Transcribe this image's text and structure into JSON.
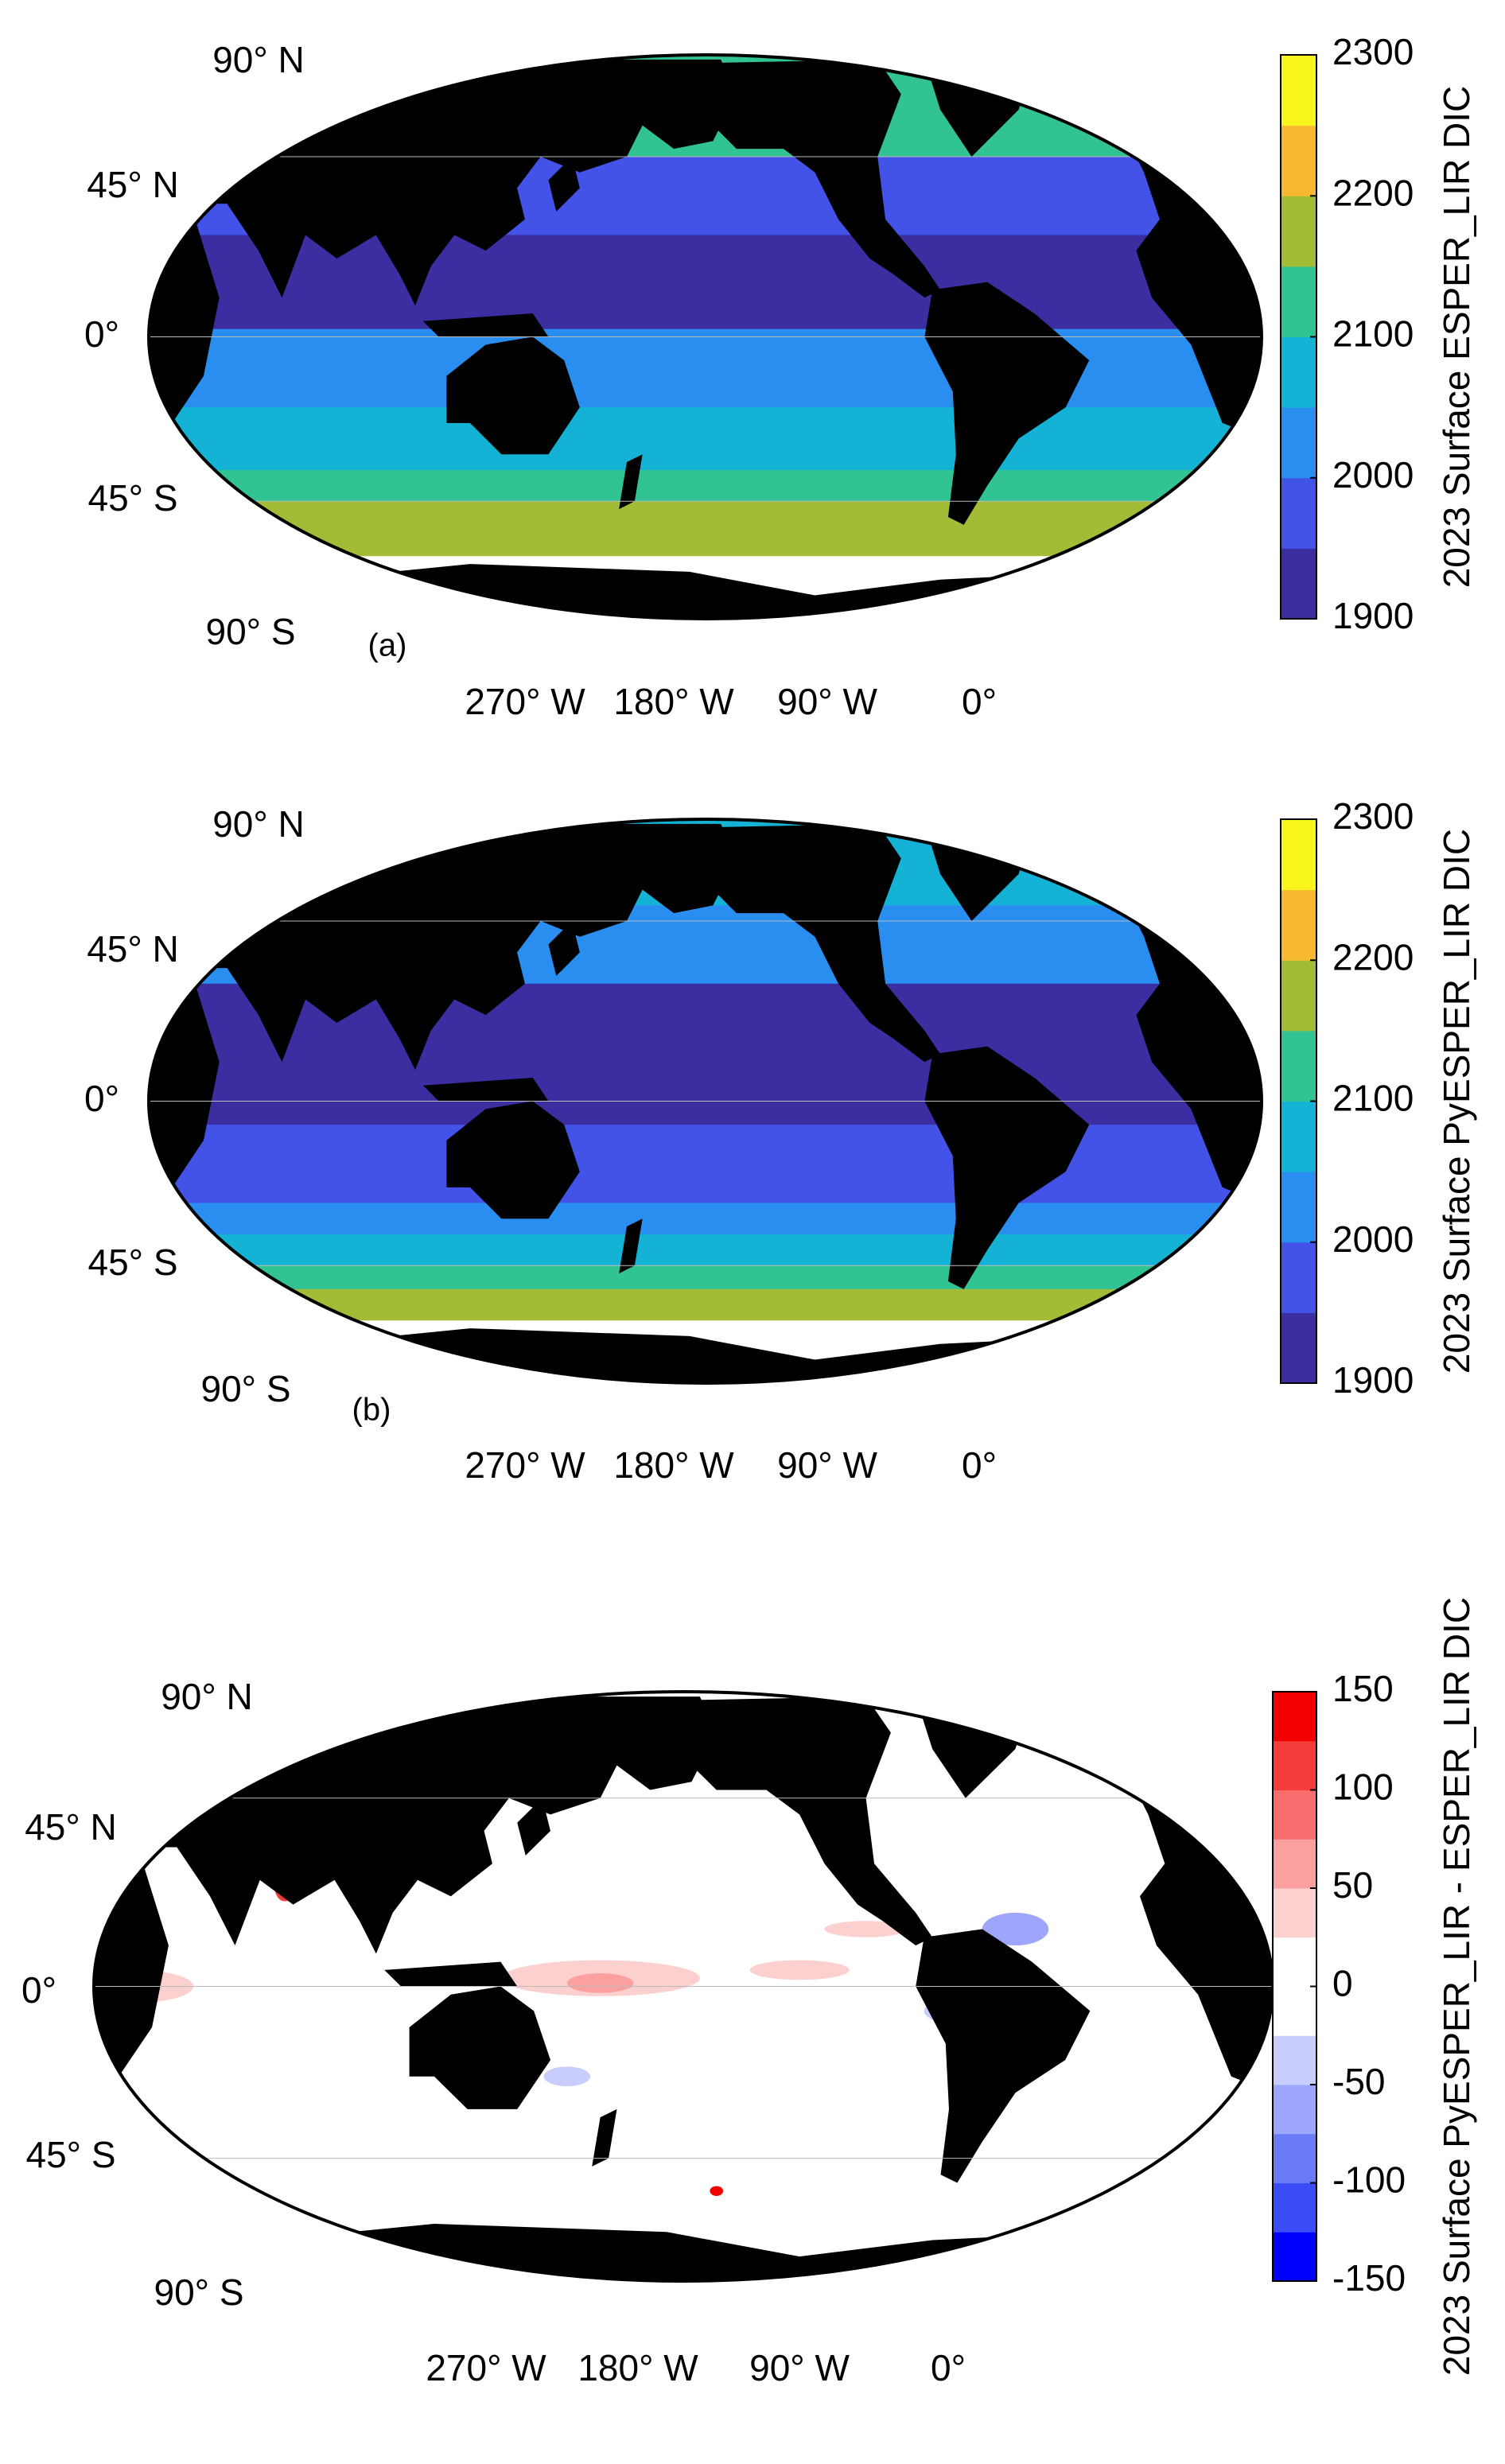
{
  "panels": [
    {
      "label": "(a)",
      "colorbar": {
        "label": "2023 Surface ESPER_LIR DIC",
        "lim": [
          1900,
          2300
        ],
        "ticks": [
          1900,
          2000,
          2100,
          2200,
          2300
        ],
        "colors": [
          "#3a2ea0",
          "#4353e8",
          "#2a8ef0",
          "#14b3d6",
          "#31c394",
          "#a2bd35",
          "#f8b932",
          "#f8f51c"
        ]
      },
      "lat_labels": [
        "90° N",
        "45° N",
        "0°",
        "45° S",
        "90° S"
      ],
      "lon_labels": [
        "270° W",
        "180° W",
        "90° W",
        "0°"
      ]
    },
    {
      "label": "(b)",
      "colorbar": {
        "label": "2023 Surface PyESPER_LIR DIC",
        "lim": [
          1900,
          2300
        ],
        "ticks": [
          1900,
          2000,
          2100,
          2200,
          2300
        ],
        "colors": [
          "#3a2ea0",
          "#4353e8",
          "#2a8ef0",
          "#14b3d6",
          "#31c394",
          "#a2bd35",
          "#f8b932",
          "#f8f51c"
        ]
      },
      "lat_labels": [
        "90° N",
        "45° N",
        "0°",
        "45° S",
        "90° S"
      ],
      "lon_labels": [
        "270° W",
        "180° W",
        "90° W",
        "0°"
      ]
    },
    {
      "colorbar": {
        "label": "2023 Surface PyESPER_LIR - ESPER_LIR DIC",
        "lim": [
          -150,
          150
        ],
        "ticks": [
          -150,
          -100,
          -50,
          0,
          50,
          100,
          150
        ],
        "colors": [
          "#0000ff",
          "#3a4cf5",
          "#6a7bf8",
          "#9da6fb",
          "#c8cdfd",
          "#ffffff",
          "#ffffff",
          "#fdd0d0",
          "#fb9f9f",
          "#f86d6d",
          "#f43c3c",
          "#f20000"
        ]
      },
      "lat_labels": [
        "90° N",
        "45° N",
        "0°",
        "45° S",
        "90° S"
      ],
      "lon_labels": [
        "270° W",
        "180° W",
        "90° W",
        "0°"
      ]
    }
  ]
}
